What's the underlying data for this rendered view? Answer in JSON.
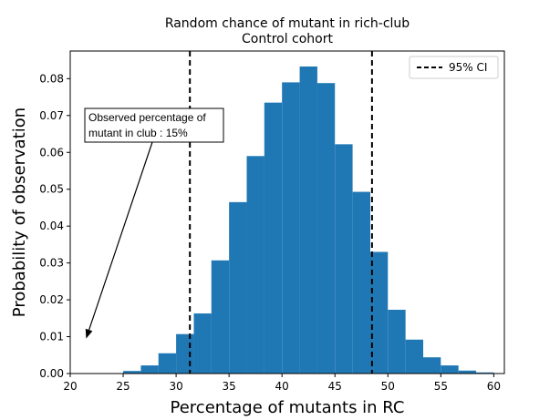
{
  "chart_data": {
    "type": "bar",
    "title": "Random chance of mutant in rich-club",
    "subtitle": "Control cohort",
    "xlabel": "Percentage of mutants in RC",
    "ylabel": "Probability of observation",
    "xlim": [
      20,
      61
    ],
    "ylim": [
      0,
      0.0875
    ],
    "xticks": [
      20,
      25,
      30,
      35,
      40,
      45,
      50,
      55,
      60
    ],
    "yticks": [
      0.0,
      0.01,
      0.02,
      0.03,
      0.04,
      0.05,
      0.06,
      0.07,
      0.08
    ],
    "ytick_labels": [
      "0.00",
      "0.01",
      "0.02",
      "0.03",
      "0.04",
      "0.05",
      "0.06",
      "0.07",
      "0.08"
    ],
    "bar_color": "#1f77b4",
    "bin_width": 1.667,
    "bins": [
      {
        "x": 23.33,
        "y": 0.0001
      },
      {
        "x": 25.0,
        "y": 0.0007
      },
      {
        "x": 26.67,
        "y": 0.0022
      },
      {
        "x": 28.33,
        "y": 0.0055
      },
      {
        "x": 30.0,
        "y": 0.0107
      },
      {
        "x": 31.67,
        "y": 0.0163
      },
      {
        "x": 33.33,
        "y": 0.0307
      },
      {
        "x": 35.0,
        "y": 0.0465
      },
      {
        "x": 36.67,
        "y": 0.059
      },
      {
        "x": 38.33,
        "y": 0.0735
      },
      {
        "x": 40.0,
        "y": 0.079
      },
      {
        "x": 41.67,
        "y": 0.0833
      },
      {
        "x": 43.33,
        "y": 0.0788
      },
      {
        "x": 45.0,
        "y": 0.0622
      },
      {
        "x": 46.67,
        "y": 0.0493
      },
      {
        "x": 48.33,
        "y": 0.033
      },
      {
        "x": 50.0,
        "y": 0.0173
      },
      {
        "x": 51.67,
        "y": 0.0092
      },
      {
        "x": 53.33,
        "y": 0.0044
      },
      {
        "x": 55.0,
        "y": 0.0022
      },
      {
        "x": 56.67,
        "y": 0.0008
      },
      {
        "x": 58.33,
        "y": 0.0003
      }
    ],
    "ci_lines": [
      31.3,
      48.5
    ],
    "legend": {
      "label": "95% CI",
      "placement": "top-right"
    },
    "annotation": {
      "text_line1": "Observed percentage of",
      "text_line2": "mutant in club : 15%",
      "arrow_target": [
        21.5,
        0.0095
      ]
    }
  }
}
